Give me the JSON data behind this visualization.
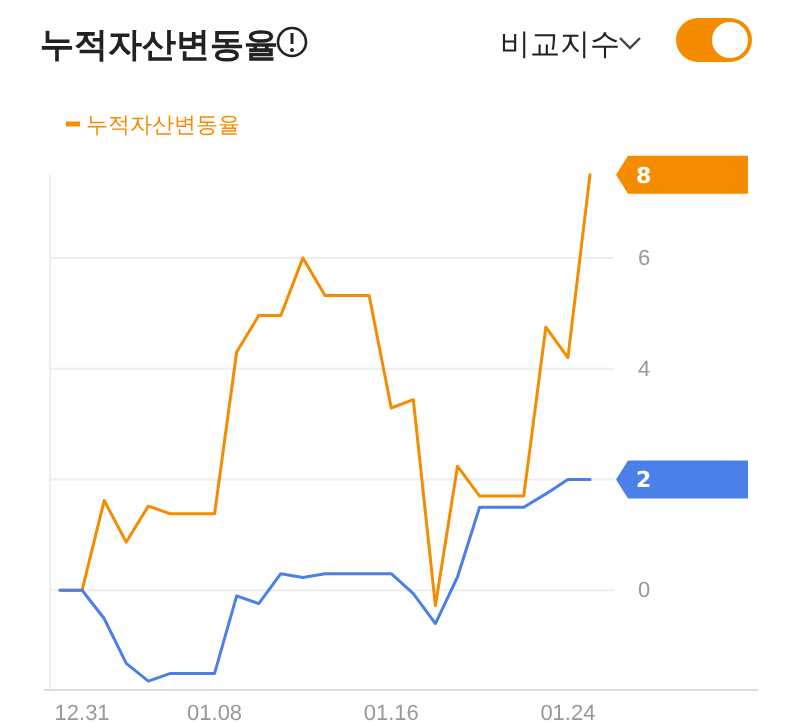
{
  "chart_data": {
    "type": "line",
    "title": "누적자산변동율",
    "annotations": [
      "비교지수",
      "8",
      "2"
    ],
    "categories": [
      null,
      "12.31",
      null,
      null,
      null,
      null,
      null,
      "01.08",
      null,
      null,
      null,
      null,
      null,
      null,
      null,
      "01.16",
      null,
      null,
      null,
      null,
      null,
      null,
      null,
      "01.24",
      null
    ],
    "series": [
      {
        "name": "누적자산변동율",
        "color": "#f58c00",
        "values": [
          0,
          0,
          1.62,
          0.87,
          1.52,
          1.38,
          1.38,
          1.38,
          4.3,
          4.96,
          4.96,
          6.0,
          5.32,
          5.32,
          5.32,
          3.29,
          3.44,
          -0.28,
          2.24,
          1.7,
          1.7,
          1.7,
          4.75,
          4.2,
          7.5
        ]
      },
      {
        "color": "#4a80e8",
        "values": [
          0,
          0,
          -0.51,
          -1.32,
          -1.64,
          -1.5,
          -1.5,
          -1.5,
          -0.1,
          -0.24,
          0.3,
          0.23,
          0.3,
          0.3,
          0.3,
          0.3,
          -0.06,
          -0.6,
          0.24,
          1.5,
          1.5,
          1.5,
          1.74,
          2.0,
          2.0
        ]
      }
    ],
    "ylim": [
      -1.8,
      7.5
    ],
    "yticks": [
      0,
      2,
      4,
      6
    ],
    "grid": "y",
    "legend": "top left"
  }
}
